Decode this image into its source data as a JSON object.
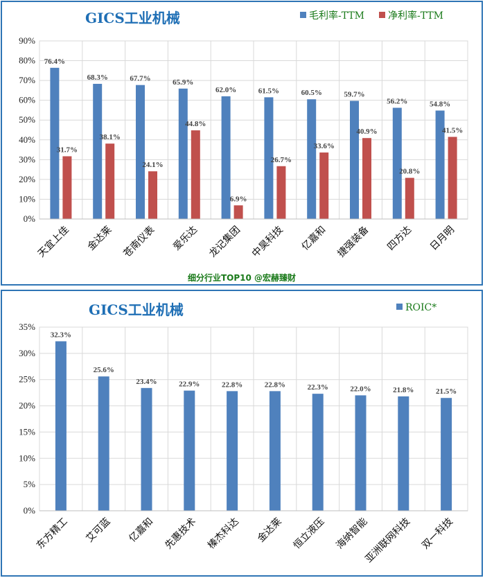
{
  "colors": {
    "blue": "#4f81bd",
    "red": "#c0504d",
    "grid": "#d9d9d9",
    "title": "#1f6fb5",
    "legend_text": "#1a7a1a",
    "border": "#2e74b5"
  },
  "chart_data": [
    {
      "type": "bar",
      "title": "GICS工业机械",
      "categories": [
        "天宜上佳",
        "金达莱",
        "苍南仪表",
        "爱乐达",
        "龙记集团",
        "中昊科技",
        "亿嘉和",
        "捷强装备",
        "四方达",
        "日月明"
      ],
      "series": [
        {
          "name": "毛利率-TTM",
          "values": [
            76.4,
            68.3,
            67.7,
            65.9,
            62.0,
            61.5,
            60.5,
            59.7,
            56.2,
            54.8
          ],
          "labels": [
            "76.4%",
            "68.3%",
            "67.7%",
            "65.9%",
            "62.0%",
            "61.5%",
            "60.5%",
            "59.7%",
            "56.2%",
            "54.8%"
          ]
        },
        {
          "name": "净利率-TTM",
          "values": [
            31.7,
            38.1,
            24.1,
            44.8,
            6.9,
            26.7,
            33.6,
            40.9,
            20.8,
            41.5
          ],
          "labels": [
            "31.7%",
            "38.1%",
            "24.1%",
            "44.8%",
            "6.9%",
            "26.7%",
            "33.6%",
            "40.9%",
            "20.8%",
            "41.5%"
          ]
        }
      ],
      "ylim": [
        0,
        90
      ],
      "yticks": [
        "0%",
        "10%",
        "20%",
        "30%",
        "40%",
        "50%",
        "60%",
        "70%",
        "80%",
        "90%"
      ],
      "grid": true,
      "legend_position": "top-right",
      "annotation": "细分行业TOP10 @宏赫臻财"
    },
    {
      "type": "bar",
      "title": "GICS工业机械",
      "categories": [
        "东方精工",
        "艾可蓝",
        "亿嘉和",
        "先惠技术",
        "榛杰科达",
        "金达莱",
        "恒立液压",
        "海纳智能",
        "亚洲联网科技",
        "双一科技"
      ],
      "series": [
        {
          "name": "ROIC*",
          "values": [
            32.3,
            25.6,
            23.4,
            22.9,
            22.8,
            22.8,
            22.3,
            22.0,
            21.8,
            21.5
          ],
          "labels": [
            "32.3%",
            "25.6%",
            "23.4%",
            "22.9%",
            "22.8%",
            "22.8%",
            "22.3%",
            "22.0%",
            "21.8%",
            "21.5%"
          ]
        }
      ],
      "ylim": [
        0,
        35
      ],
      "yticks": [
        "0%",
        "5%",
        "10%",
        "15%",
        "20%",
        "25%",
        "30%",
        "35%"
      ],
      "grid": true,
      "legend_position": "top-right"
    }
  ]
}
